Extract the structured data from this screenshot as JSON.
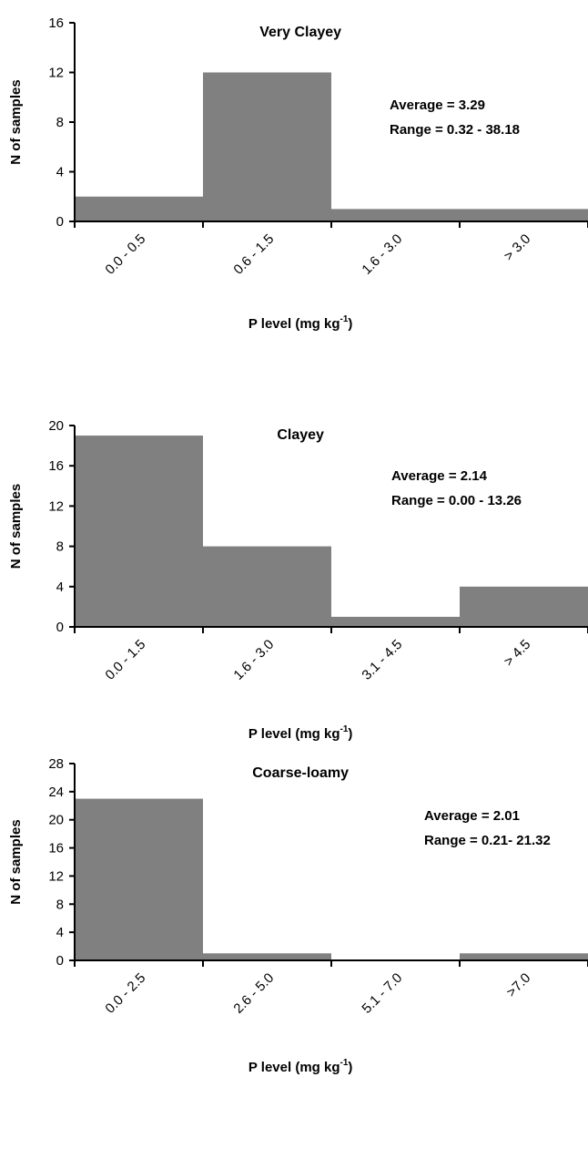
{
  "chart_data": [
    {
      "type": "bar",
      "title": "Very Clayey",
      "xlabel": "P level (mg kg",
      "xlabel_sup": "-1",
      "xlabel_close": ")",
      "ylabel": "N of samples",
      "categories": [
        "0.0 - 0.5",
        "0.6 - 1.5",
        "1.6 - 3.0",
        "> 3.0"
      ],
      "values": [
        2,
        12,
        1,
        1
      ],
      "ylim": [
        0,
        16
      ],
      "yticks": [
        0,
        4,
        8,
        12,
        16
      ],
      "annotations": [
        "Average = 3.29",
        "Range = 0.32 - 38.18"
      ],
      "bar_color": "#808080",
      "grid": false
    },
    {
      "type": "bar",
      "title": "Clayey",
      "xlabel": "P level (mg kg",
      "xlabel_sup": "-1",
      "xlabel_close": ")",
      "ylabel": "N of samples",
      "categories": [
        "0.0 - 1.5",
        "1.6 - 3.0",
        "3.1 - 4.5",
        "> 4.5"
      ],
      "values": [
        19,
        8,
        1,
        4
      ],
      "ylim": [
        0,
        20
      ],
      "yticks": [
        0,
        4,
        8,
        12,
        16,
        20
      ],
      "annotations": [
        "Average = 2.14",
        "Range = 0.00 - 13.26"
      ],
      "bar_color": "#808080",
      "grid": false
    },
    {
      "type": "bar",
      "title": "Coarse-loamy",
      "xlabel": "P level (mg kg",
      "xlabel_sup": "-1",
      "xlabel_close": ")",
      "ylabel": "N of samples",
      "categories": [
        "0.0 - 2.5",
        "2.6 - 5.0",
        "5.1 - 7.0",
        ">7.0"
      ],
      "values": [
        23,
        1,
        0,
        1
      ],
      "ylim": [
        0,
        28
      ],
      "yticks": [
        0,
        4,
        8,
        12,
        16,
        20,
        24,
        28
      ],
      "annotations": [
        "Average = 2.01",
        "Range = 0.21- 21.32"
      ],
      "bar_color": "#808080",
      "grid": false
    }
  ]
}
